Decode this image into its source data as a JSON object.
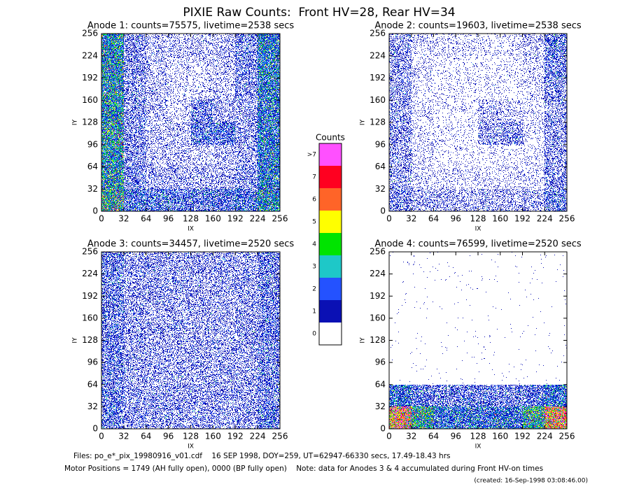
{
  "title": "PIXIE Raw Counts:  Front HV=28, Rear HV=34",
  "colorbar": {
    "title": "Counts",
    "ticks": [
      0,
      1,
      2,
      3,
      4,
      5,
      6,
      7,
      {
        "value": 8,
        "label": ">7"
      }
    ],
    "colors": [
      "#ffffff",
      "#0a10b4",
      "#2452ff",
      "#1ec8c8",
      "#00e400",
      "#ffff00",
      "#ff6428",
      "#ff0020",
      "#ff50ff"
    ]
  },
  "chart_data": [
    {
      "type": "heatmap",
      "title": "Anode 1: counts=75575, livetime=2538 secs",
      "x_label": "IX",
      "y_label": "IY",
      "xlim": [
        0,
        256
      ],
      "ylim": [
        0,
        256
      ],
      "xticks": [
        0,
        32,
        64,
        96,
        128,
        160,
        192,
        224,
        256
      ],
      "yticks": [
        0,
        32,
        64,
        96,
        128,
        160,
        192,
        224,
        256
      ],
      "values": [
        [
          2.5,
          0.6,
          0.3,
          0.3,
          0.3,
          0.3,
          0.7,
          2.0
        ],
        [
          2.5,
          0.6,
          0.3,
          0.2,
          0.2,
          0.3,
          0.7,
          2.0
        ],
        [
          2.5,
          0.6,
          0.3,
          0.2,
          0.2,
          0.3,
          0.6,
          1.8
        ],
        [
          2.5,
          0.6,
          0.3,
          0.2,
          0.7,
          0.4,
          0.5,
          1.8
        ],
        [
          2.5,
          0.6,
          0.3,
          0.3,
          1.0,
          1.0,
          0.5,
          1.8
        ],
        [
          2.5,
          0.6,
          0.3,
          0.3,
          0.3,
          0.3,
          0.5,
          1.8
        ],
        [
          2.5,
          0.7,
          0.4,
          0.4,
          0.4,
          0.4,
          0.6,
          1.8
        ],
        [
          3.0,
          1.2,
          1.0,
          1.0,
          1.0,
          1.0,
          1.2,
          2.2
        ]
      ]
    },
    {
      "type": "heatmap",
      "title": "Anode 2: counts=19603, livetime=2538 secs",
      "x_label": "IX",
      "y_label": "IY",
      "xlim": [
        0,
        256
      ],
      "ylim": [
        0,
        256
      ],
      "xticks": [
        0,
        32,
        64,
        96,
        128,
        160,
        192,
        224,
        256
      ],
      "yticks": [
        0,
        32,
        64,
        96,
        128,
        160,
        192,
        224,
        256
      ],
      "values": [
        [
          0.5,
          0.2,
          0.15,
          0.15,
          0.15,
          0.15,
          0.25,
          0.8
        ],
        [
          0.5,
          0.15,
          0.1,
          0.1,
          0.1,
          0.1,
          0.2,
          0.7
        ],
        [
          0.5,
          0.15,
          0.1,
          0.1,
          0.1,
          0.1,
          0.2,
          0.6
        ],
        [
          0.5,
          0.15,
          0.1,
          0.1,
          0.3,
          0.2,
          0.15,
          0.5
        ],
        [
          0.5,
          0.15,
          0.1,
          0.1,
          0.5,
          0.6,
          0.15,
          0.5
        ],
        [
          0.5,
          0.15,
          0.1,
          0.1,
          0.1,
          0.1,
          0.15,
          0.5
        ],
        [
          0.5,
          0.2,
          0.15,
          0.15,
          0.15,
          0.15,
          0.2,
          0.6
        ],
        [
          0.6,
          0.4,
          0.35,
          0.35,
          0.35,
          0.35,
          0.4,
          0.8
        ]
      ]
    },
    {
      "type": "heatmap",
      "title": "Anode 3: counts=34457, livetime=2520 secs",
      "x_label": "IX",
      "y_label": "IY",
      "xlim": [
        0,
        256
      ],
      "ylim": [
        0,
        256
      ],
      "xticks": [
        0,
        32,
        64,
        96,
        128,
        160,
        192,
        224,
        256
      ],
      "yticks": [
        0,
        32,
        64,
        96,
        128,
        160,
        192,
        224,
        256
      ],
      "values": [
        [
          0.8,
          0.5,
          0.5,
          0.5,
          0.5,
          0.5,
          0.5,
          0.8
        ],
        [
          0.8,
          0.5,
          0.5,
          0.45,
          0.45,
          0.5,
          0.5,
          0.8
        ],
        [
          0.8,
          0.5,
          0.45,
          0.45,
          0.45,
          0.45,
          0.5,
          0.8
        ],
        [
          0.8,
          0.5,
          0.45,
          0.45,
          0.45,
          0.45,
          0.5,
          0.8
        ],
        [
          0.8,
          0.5,
          0.45,
          0.45,
          0.45,
          0.45,
          0.5,
          0.8
        ],
        [
          0.8,
          0.5,
          0.45,
          0.45,
          0.45,
          0.45,
          0.5,
          0.8
        ],
        [
          0.8,
          0.5,
          0.5,
          0.5,
          0.5,
          0.5,
          0.5,
          0.8
        ],
        [
          0.9,
          0.55,
          0.5,
          0.5,
          0.5,
          0.5,
          0.55,
          0.9
        ]
      ]
    },
    {
      "type": "heatmap",
      "title": "Anode 4: counts=76599, livetime=2520 secs",
      "x_label": "IX",
      "y_label": "IY",
      "xlim": [
        0,
        256
      ],
      "ylim": [
        0,
        256
      ],
      "xticks": [
        0,
        32,
        64,
        96,
        128,
        160,
        192,
        224,
        256
      ],
      "yticks": [
        0,
        32,
        64,
        96,
        128,
        160,
        192,
        224,
        256
      ],
      "values": [
        [
          0.005,
          0.005,
          0.005,
          0.005,
          0.005,
          0.005,
          0.005,
          0.005
        ],
        [
          0.005,
          0.005,
          0.005,
          0.005,
          0.005,
          0.005,
          0.005,
          0.005
        ],
        [
          0.005,
          0.005,
          0.005,
          0.005,
          0.005,
          0.005,
          0.005,
          0.005
        ],
        [
          0.005,
          0.005,
          0.005,
          0.005,
          0.005,
          0.005,
          0.005,
          0.005
        ],
        [
          0.005,
          0.005,
          0.005,
          0.005,
          0.005,
          0.005,
          0.005,
          0.005
        ],
        [
          0.005,
          0.005,
          0.005,
          0.005,
          0.005,
          0.005,
          0.005,
          0.005
        ],
        [
          1.5,
          0.9,
          0.8,
          0.8,
          0.8,
          0.8,
          0.9,
          1.5
        ],
        [
          6.0,
          3.0,
          1.5,
          1.5,
          1.5,
          1.5,
          3.0,
          6.0
        ]
      ]
    }
  ],
  "footer": {
    "files": "Files: po_e*_pix_19980916_v01.cdf    16 SEP 1998, DOY=259, UT=62947-66330 secs, 17.49-18.43 hrs",
    "motor": "Motor Positions = 1749 (AH fully open), 0000 (BP fully open)    Note: data for Anodes 3 & 4 accumulated during Front HV-on times",
    "created": "(created: 16-Sep-1998 03:08:46.00)"
  }
}
